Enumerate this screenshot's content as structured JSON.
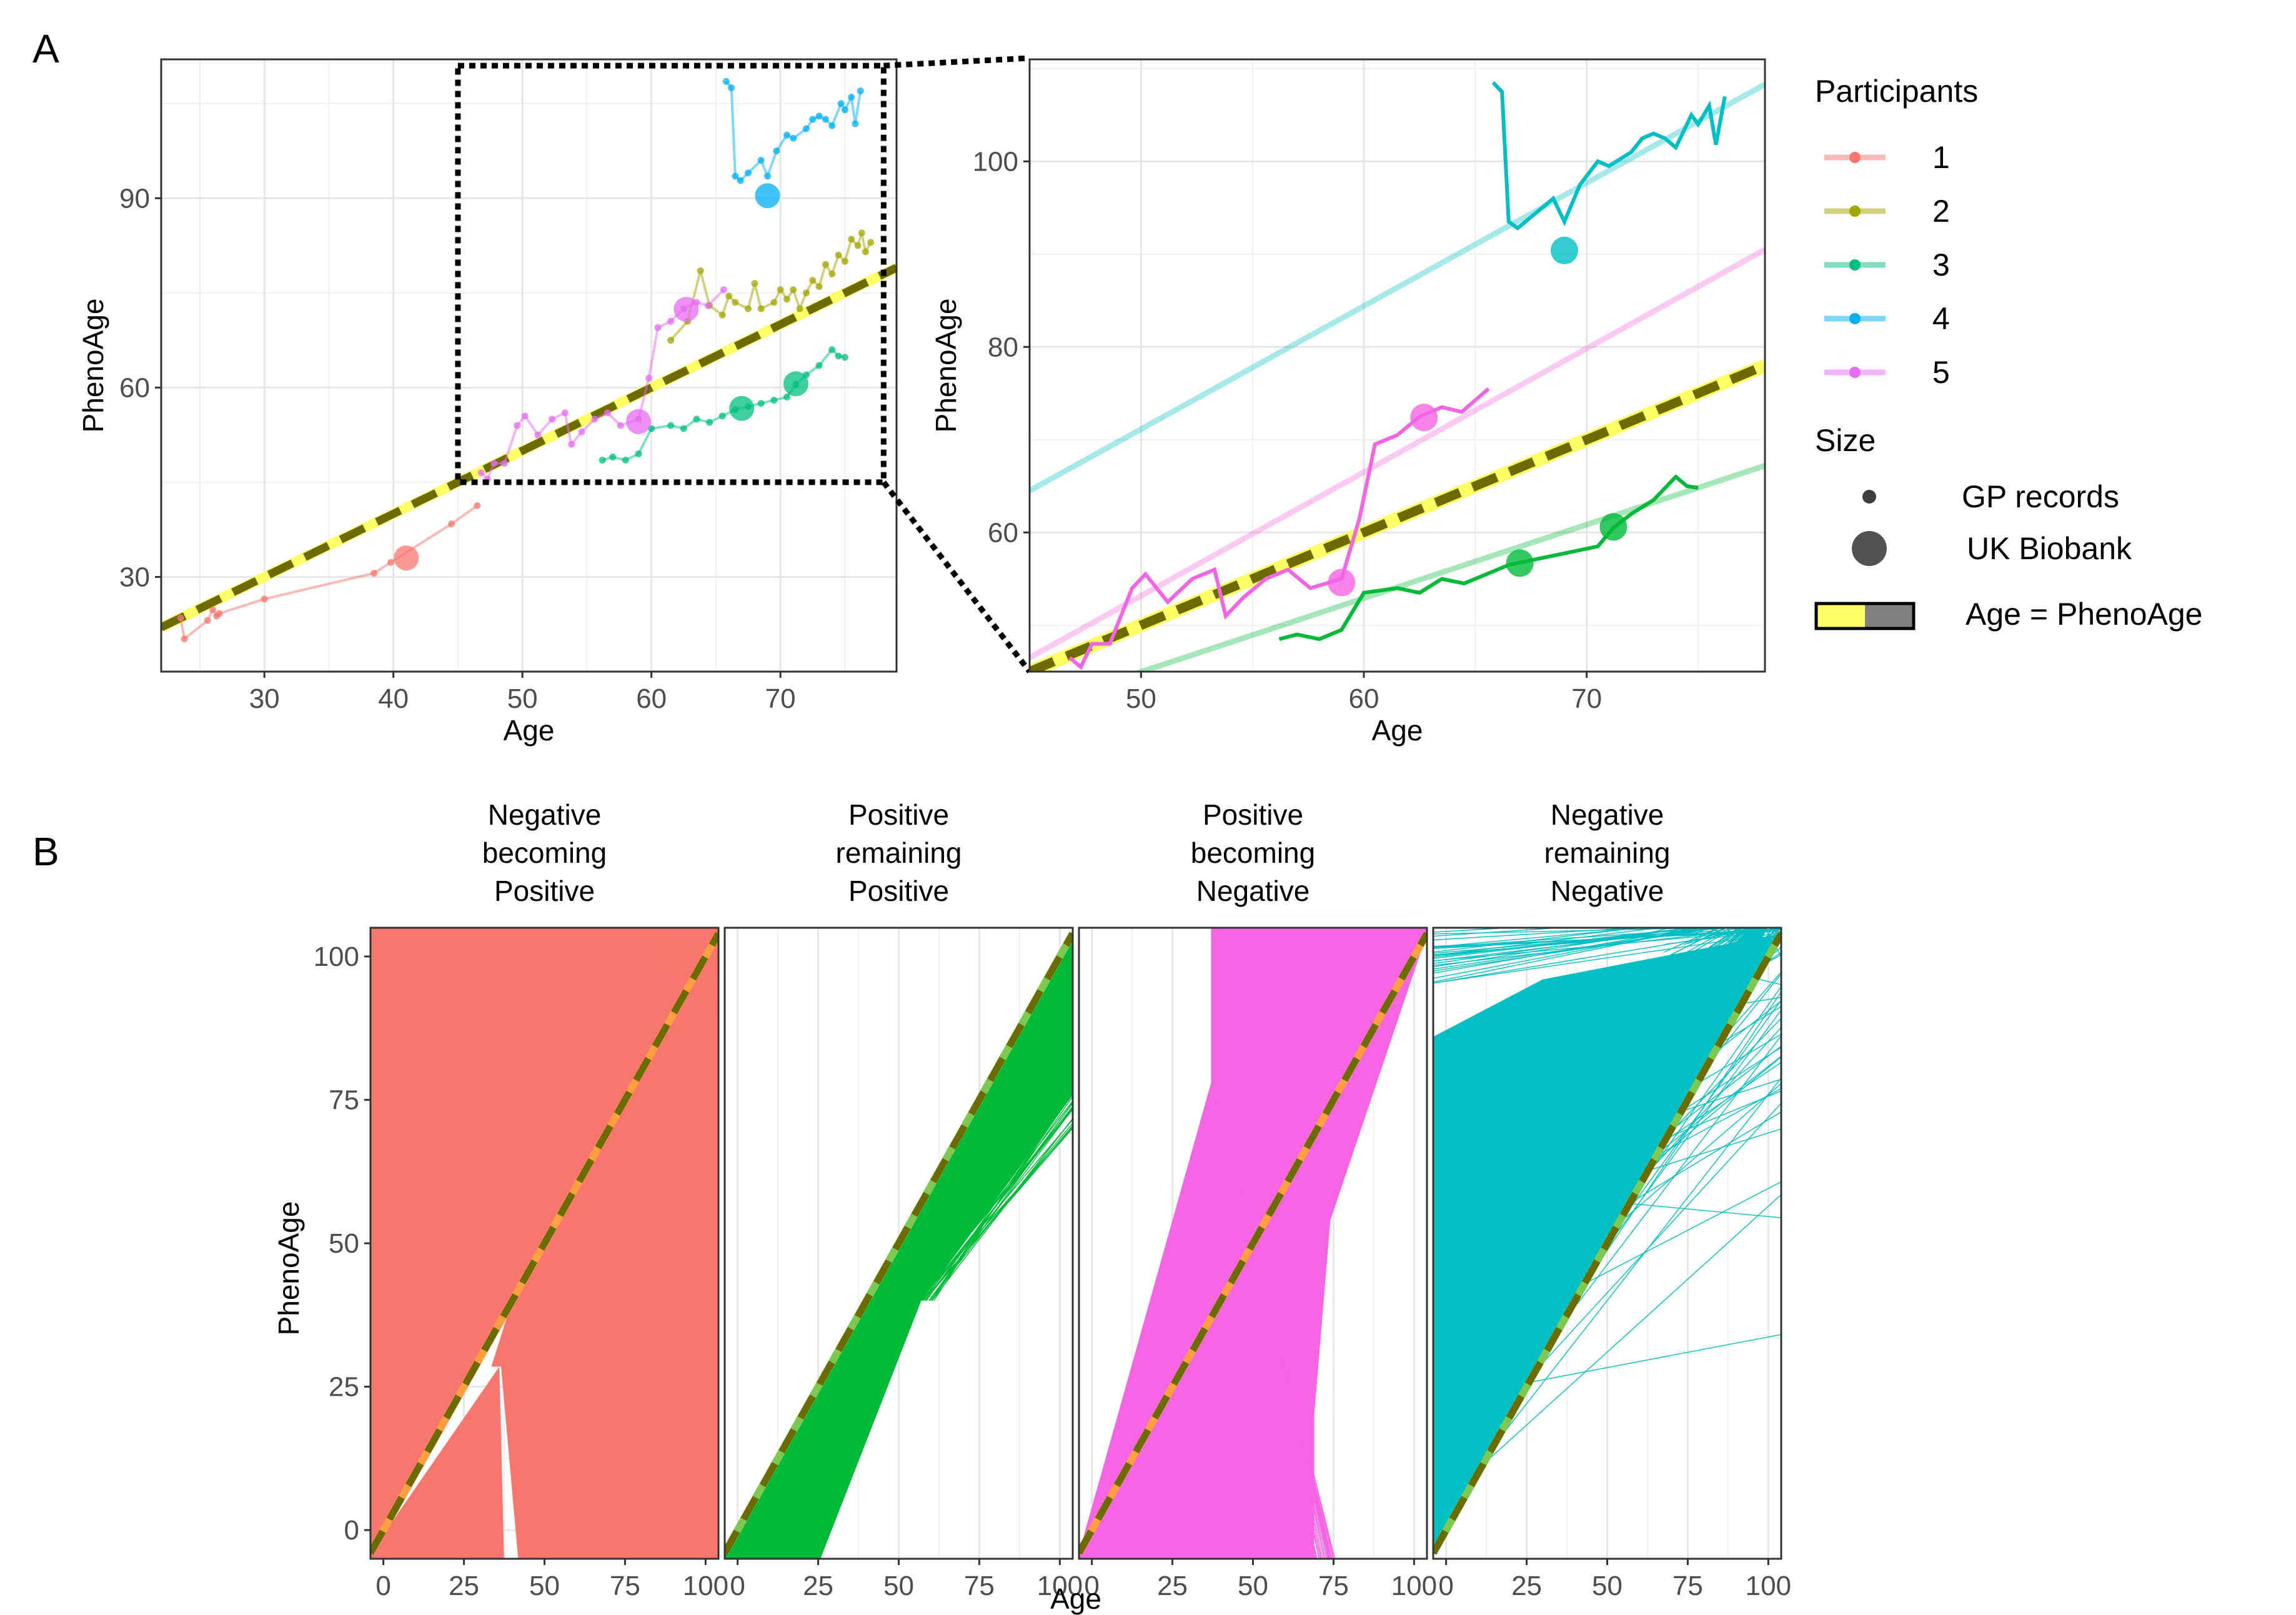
{
  "panel_labels": [
    "A",
    "B"
  ],
  "colors": {
    "p1": "#F8766D",
    "p2": "#A3A500",
    "p3": "#00BF7D",
    "p4": "#00B0F6",
    "p5": "#E76BF3",
    "p3_line": "#00BA38",
    "p4_line": "#00BFC4",
    "p5_line": "#F564E3",
    "identity_fill": "#FFFF66",
    "identity_dash": "#6B6B00",
    "B_neg_pos": "#F8766D",
    "B_pos_pos": "#00BA38",
    "B_pos_neg": "#F564E3",
    "B_neg_neg": "#00BFC4"
  },
  "legend": {
    "participants_title": "Participants",
    "participants": [
      "1",
      "2",
      "3",
      "4",
      "5"
    ],
    "size_title": "Size",
    "size_items": [
      "GP records",
      "UK Biobank"
    ],
    "identity_label": "Age = PhenoAge"
  },
  "chart_data": [
    {
      "id": "A-left",
      "type": "line",
      "xlabel": "Age",
      "ylabel": "PhenoAge",
      "xlim": [
        22,
        79
      ],
      "ylim": [
        15,
        112
      ],
      "xticks": [
        30,
        40,
        50,
        60,
        70
      ],
      "yticks": [
        30,
        60,
        90
      ],
      "grid": true,
      "zoom_box": {
        "x": [
          45,
          78
        ],
        "y": [
          45,
          111
        ]
      },
      "identity_line": {
        "from": [
          22,
          22
        ],
        "to": [
          79,
          79
        ]
      },
      "series": [
        {
          "name": "1",
          "color_key": "p1",
          "points": [
            [
              23.5,
              23.5
            ],
            [
              23.8,
              20.2
            ],
            [
              25.6,
              23.1
            ],
            [
              26,
              24.8
            ],
            [
              26.3,
              23.8
            ],
            [
              26.5,
              24.2
            ],
            [
              30,
              26.5
            ],
            [
              38.5,
              30.6
            ],
            [
              39.8,
              32.3
            ],
            [
              44.5,
              38.4
            ],
            [
              46.5,
              41.3
            ]
          ],
          "biobank": [
            [
              41,
              33
            ]
          ]
        },
        {
          "name": "2",
          "color_key": "p2",
          "points": [
            [
              61.5,
              67.5
            ],
            [
              62.8,
              70.5
            ],
            [
              63.8,
              78.5
            ],
            [
              64.5,
              73
            ],
            [
              65.5,
              71.5
            ],
            [
              66,
              74.5
            ],
            [
              66.5,
              73.5
            ],
            [
              67.5,
              72.5
            ],
            [
              68,
              76.5
            ],
            [
              68.5,
              72.5
            ],
            [
              69.5,
              73.5
            ],
            [
              70,
              75.5
            ],
            [
              70.5,
              74
            ],
            [
              71,
              75.5
            ],
            [
              71.5,
              72.5
            ],
            [
              72,
              75
            ],
            [
              72.5,
              77
            ],
            [
              73,
              76
            ],
            [
              73.5,
              79.5
            ],
            [
              74,
              78
            ],
            [
              74.5,
              81
            ],
            [
              75,
              80
            ],
            [
              75.5,
              83.5
            ],
            [
              76,
              82.5
            ],
            [
              76.3,
              84.5
            ],
            [
              76.6,
              81.5
            ],
            [
              77,
              83
            ]
          ],
          "biobank": []
        },
        {
          "name": "3",
          "color_key": "p3",
          "points": [
            [
              56.2,
              48.5
            ],
            [
              57,
              49
            ],
            [
              58,
              48.5
            ],
            [
              59,
              49.5
            ],
            [
              60,
              53.5
            ],
            [
              61.5,
              54
            ],
            [
              62.5,
              53.5
            ],
            [
              63.5,
              55
            ],
            [
              64.5,
              54.5
            ],
            [
              65.5,
              55.5
            ],
            [
              66.5,
              56.5
            ],
            [
              67.5,
              57
            ],
            [
              68.5,
              57.5
            ],
            [
              69.5,
              58
            ],
            [
              70.5,
              58.5
            ],
            [
              71.2,
              60.5
            ],
            [
              72,
              62
            ],
            [
              73,
              63.5
            ],
            [
              74,
              66
            ],
            [
              74.5,
              65
            ],
            [
              75,
              64.8
            ]
          ],
          "biobank": [
            [
              67,
              56.7
            ],
            [
              71.2,
              60.6
            ]
          ]
        },
        {
          "name": "4",
          "color_key": "p4",
          "points": [
            [
              65.8,
              108.5
            ],
            [
              66.2,
              107.5
            ],
            [
              66.5,
              93.5
            ],
            [
              66.9,
              92.8
            ],
            [
              67.5,
              94
            ],
            [
              68.5,
              96
            ],
            [
              69,
              93.5
            ],
            [
              69.7,
              97.5
            ],
            [
              70.5,
              100
            ],
            [
              71,
              99.5
            ],
            [
              72,
              101
            ],
            [
              72.5,
              102.5
            ],
            [
              73,
              103
            ],
            [
              73.5,
              102.5
            ],
            [
              74,
              101.5
            ],
            [
              74.7,
              105
            ],
            [
              75,
              104
            ],
            [
              75.5,
              106
            ],
            [
              75.8,
              101.8
            ],
            [
              76.2,
              107
            ]
          ],
          "biobank": [
            [
              69,
              90.4
            ]
          ]
        },
        {
          "name": "5",
          "color_key": "p5",
          "points": [
            [
              46.8,
              46.5
            ],
            [
              47.3,
              45.5
            ],
            [
              47.8,
              48
            ],
            [
              48.6,
              48
            ],
            [
              49.6,
              54
            ],
            [
              50.2,
              55.5
            ],
            [
              51.2,
              52.5
            ],
            [
              52.3,
              55
            ],
            [
              53.3,
              56
            ],
            [
              53.8,
              51
            ],
            [
              54.6,
              53
            ],
            [
              55.6,
              55
            ],
            [
              56.6,
              56
            ],
            [
              57.6,
              54
            ],
            [
              59,
              55
            ],
            [
              59.8,
              61.5
            ],
            [
              60.5,
              69.5
            ],
            [
              61.5,
              70.5
            ],
            [
              62.5,
              72.5
            ],
            [
              63.5,
              73.5
            ],
            [
              64.4,
              73
            ],
            [
              65.6,
              75.5
            ]
          ],
          "biobank": [
            [
              59,
              54.6
            ],
            [
              62.7,
              72.4
            ]
          ]
        }
      ]
    },
    {
      "id": "A-right",
      "type": "line",
      "xlabel": "Age",
      "ylabel": "PhenoAge",
      "xlim": [
        45,
        78
      ],
      "ylim": [
        45,
        111
      ],
      "xticks": [
        50,
        60,
        70
      ],
      "yticks": [
        60,
        80,
        100
      ],
      "grid": true,
      "identity_line": {
        "from": [
          45,
          45
        ],
        "to": [
          78,
          78
        ]
      },
      "trend_lines": [
        {
          "series": "4",
          "color_key": "p4_line",
          "from": [
            45,
            64.5
          ],
          "to": [
            78,
            108.3
          ]
        },
        {
          "series": "5",
          "color_key": "p5_line",
          "from": [
            45,
            46.5
          ],
          "to": [
            78,
            90.5
          ]
        },
        {
          "series": "3",
          "color_key": "p3_line",
          "from": [
            45,
            41
          ],
          "to": [
            78,
            67.2
          ]
        }
      ]
    },
    {
      "id": "B-1",
      "type": "line",
      "title": "Negative\nbecoming\nPositive",
      "color_key": "B_neg_pos",
      "xlim": [
        -4,
        104
      ],
      "ylim": [
        -5,
        105
      ],
      "xticks": [
        0,
        25,
        50,
        75,
        100
      ],
      "yticks": [
        0,
        25,
        50,
        75,
        100
      ]
    },
    {
      "id": "B-2",
      "type": "line",
      "title": "Positive\nremaining\nPositive",
      "color_key": "B_pos_pos",
      "xlim": [
        -4,
        104
      ],
      "ylim": [
        -5,
        105
      ],
      "xticks": [
        0,
        25,
        50,
        75,
        100
      ]
    },
    {
      "id": "B-3",
      "type": "line",
      "title": "Positive\nbecoming\nNegative",
      "color_key": "B_pos_neg",
      "xlim": [
        -4,
        104
      ],
      "ylim": [
        -5,
        105
      ],
      "xticks": [
        0,
        25,
        50,
        75,
        100
      ]
    },
    {
      "id": "B-4",
      "type": "line",
      "title": "Negative\nremaining\nNegative",
      "color_key": "B_neg_neg",
      "xlim": [
        -4,
        104
      ],
      "ylim": [
        -5,
        105
      ],
      "xticks": [
        0,
        25,
        50,
        75,
        100
      ]
    }
  ],
  "B_axis": {
    "xlabel": "Age",
    "ylabel": "PhenoAge"
  }
}
